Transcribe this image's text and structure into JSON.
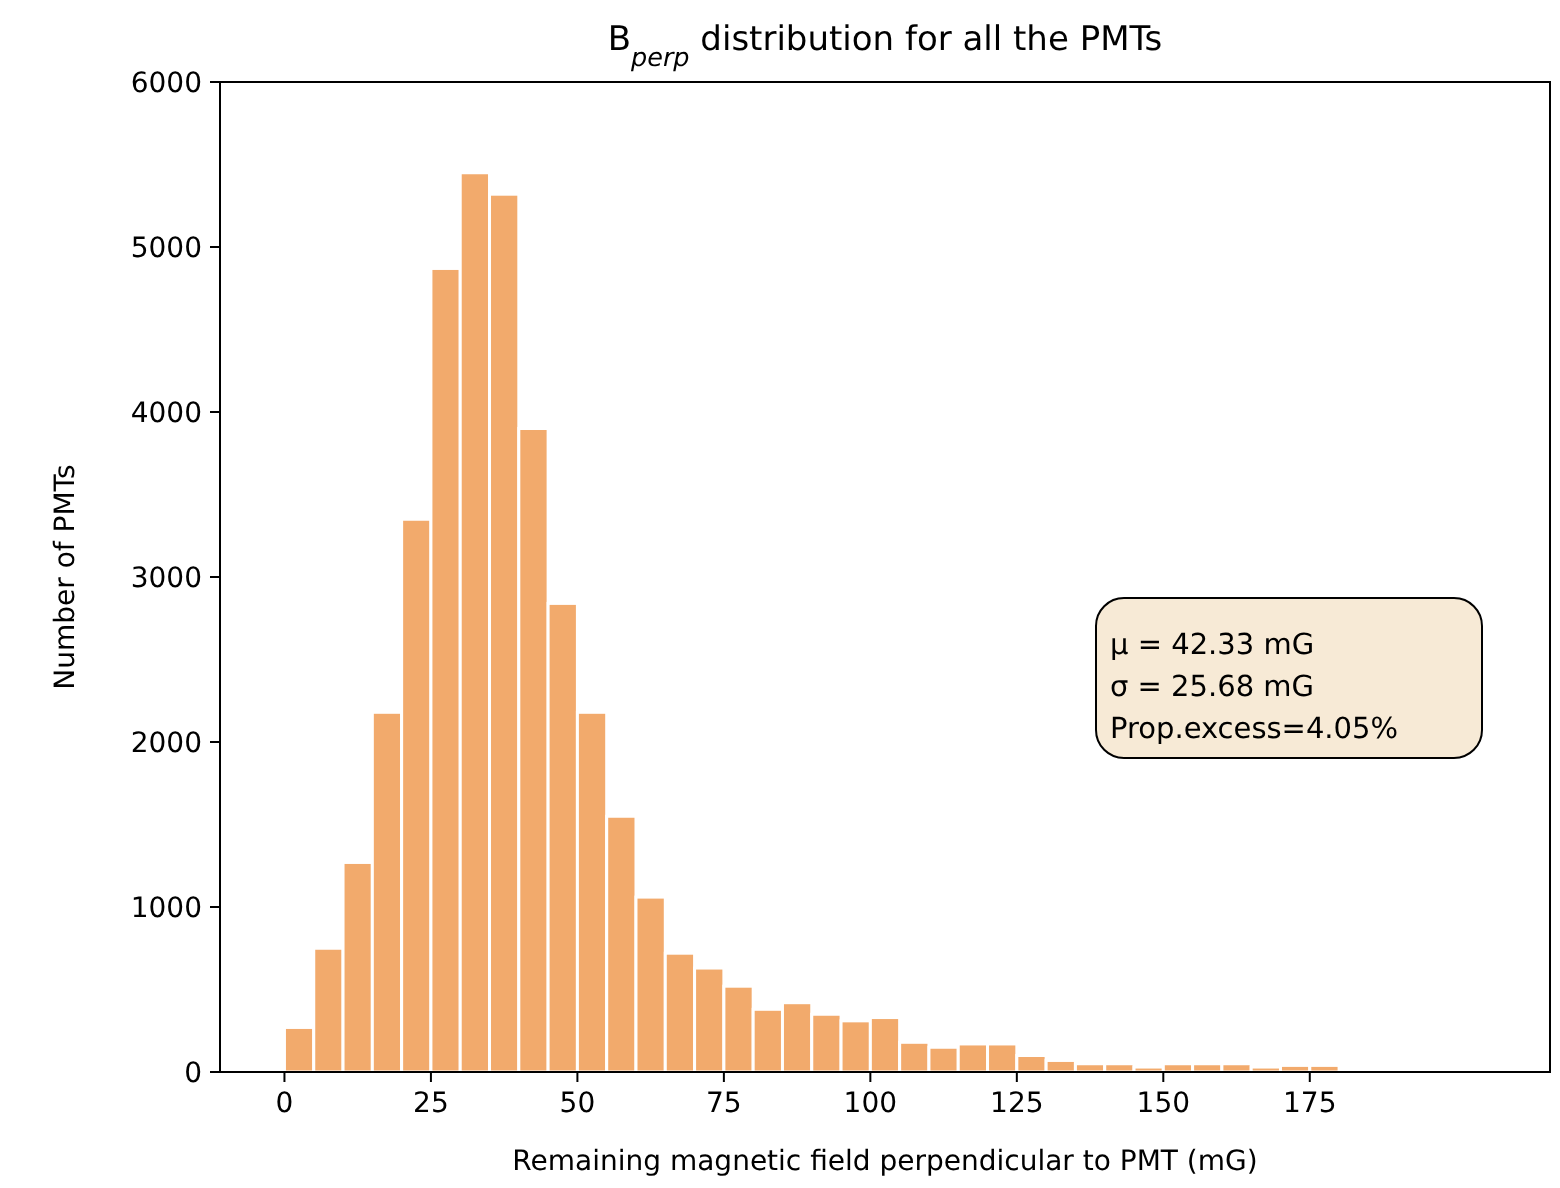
{
  "chart_data": {
    "type": "histogram",
    "title": "B$_{perp}$ distribution for all the PMTs",
    "xlabel": "Remaining magnetic field perpendicular to PMT (mG)",
    "ylabel": "Number of PMTs",
    "bins": [
      0,
      5,
      10,
      15,
      20,
      25,
      30,
      35,
      40,
      45,
      50,
      55,
      60,
      65,
      70,
      75,
      80,
      85,
      90,
      95,
      100,
      105,
      110,
      115,
      120,
      125,
      130,
      135,
      140,
      145,
      150,
      155,
      160,
      165,
      170,
      175,
      180
    ],
    "values": [
      270,
      750,
      1270,
      2180,
      3350,
      4870,
      5450,
      5320,
      3900,
      2840,
      2180,
      1550,
      1060,
      720,
      630,
      520,
      380,
      420,
      350,
      310,
      330,
      180,
      150,
      170,
      170,
      100,
      70,
      50,
      50,
      30,
      50,
      50,
      50,
      30,
      40,
      40
    ],
    "color": "#f2aa6c",
    "xlim": [
      -11,
      216
    ],
    "xticks": [
      0,
      25,
      50,
      75,
      100,
      125,
      150,
      175
    ],
    "ylim": [
      0,
      6000
    ],
    "yticks": [
      0,
      1000,
      2000,
      3000,
      4000,
      5000,
      6000
    ],
    "annotations": [
      "μ = 42.33 mG",
      "σ = 25.68 mG",
      "Prop.excess=4.05%"
    ]
  }
}
